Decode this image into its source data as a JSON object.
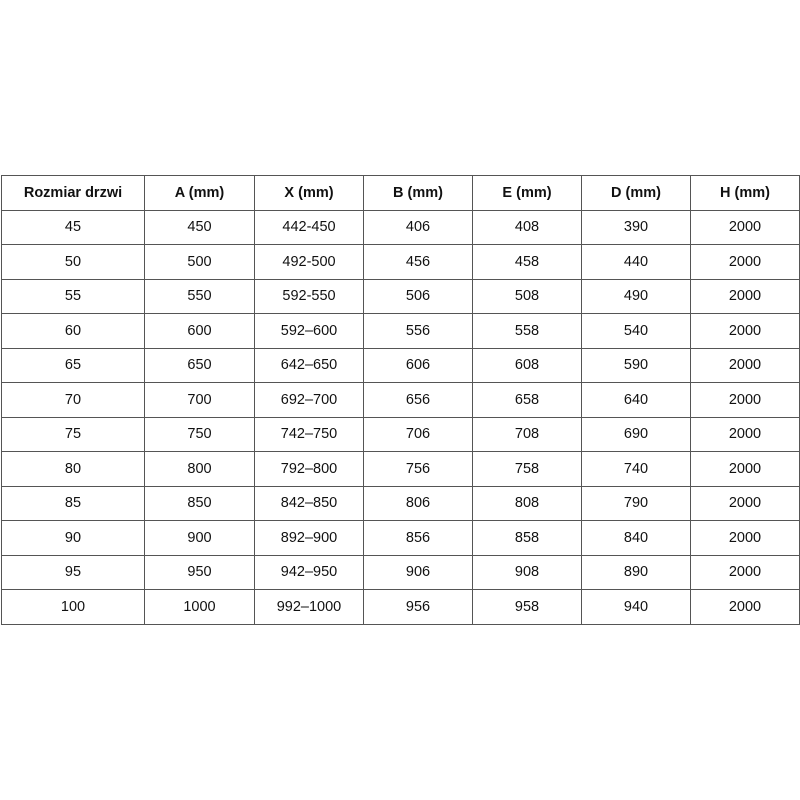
{
  "table": {
    "headers": [
      "Rozmiar drzwi",
      "A (mm)",
      "X (mm)",
      "B (mm)",
      "E (mm)",
      "D (mm)",
      "H (mm)"
    ],
    "rows": [
      [
        "45",
        "450",
        "442-450",
        "406",
        "408",
        "390",
        "2000"
      ],
      [
        "50",
        "500",
        "492-500",
        "456",
        "458",
        "440",
        "2000"
      ],
      [
        "55",
        "550",
        "592-550",
        "506",
        "508",
        "490",
        "2000"
      ],
      [
        "60",
        "600",
        "592–600",
        "556",
        "558",
        "540",
        "2000"
      ],
      [
        "65",
        "650",
        "642–650",
        "606",
        "608",
        "590",
        "2000"
      ],
      [
        "70",
        "700",
        "692–700",
        "656",
        "658",
        "640",
        "2000"
      ],
      [
        "75",
        "750",
        "742–750",
        "706",
        "708",
        "690",
        "2000"
      ],
      [
        "80",
        "800",
        "792–800",
        "756",
        "758",
        "740",
        "2000"
      ],
      [
        "85",
        "850",
        "842–850",
        "806",
        "808",
        "790",
        "2000"
      ],
      [
        "90",
        "900",
        "892–900",
        "856",
        "858",
        "840",
        "2000"
      ],
      [
        "95",
        "950",
        "942–950",
        "906",
        "908",
        "890",
        "2000"
      ],
      [
        "100",
        "1000",
        "992–1000",
        "956",
        "958",
        "940",
        "2000"
      ]
    ]
  }
}
